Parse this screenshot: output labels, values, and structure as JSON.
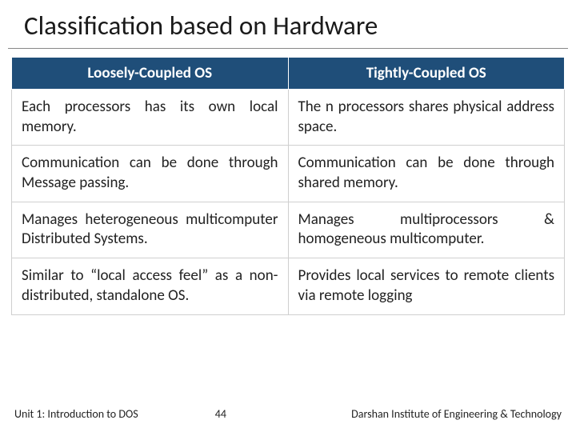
{
  "title": "Classification based on Hardware",
  "table": {
    "headers": [
      "Loosely-Coupled OS",
      "Tightly-Coupled OS"
    ],
    "rows": [
      [
        "Each processors has its own local memory.",
        "The n processors shares physical address space."
      ],
      [
        "Communication can be done through Message passing.",
        "Communication can be done through shared memory."
      ],
      [
        "Manages heterogeneous multicomputer Distributed Systems.",
        "Manages multiprocessors & homogeneous multicomputer."
      ],
      [
        "Similar to “local access feel” as a non-distributed, standalone OS.",
        "Provides local services to remote clients via remote logging"
      ]
    ]
  },
  "footer": {
    "unit": "Unit 1: Introduction to DOS",
    "page": "44",
    "org": "Darshan Institute of Engineering & Technology"
  },
  "colors": {
    "header_bg": "#1f4e79",
    "header_fg": "#ffffff",
    "cell_border": "#cfcfcf",
    "title_underline": "#888888",
    "text": "#222222"
  }
}
